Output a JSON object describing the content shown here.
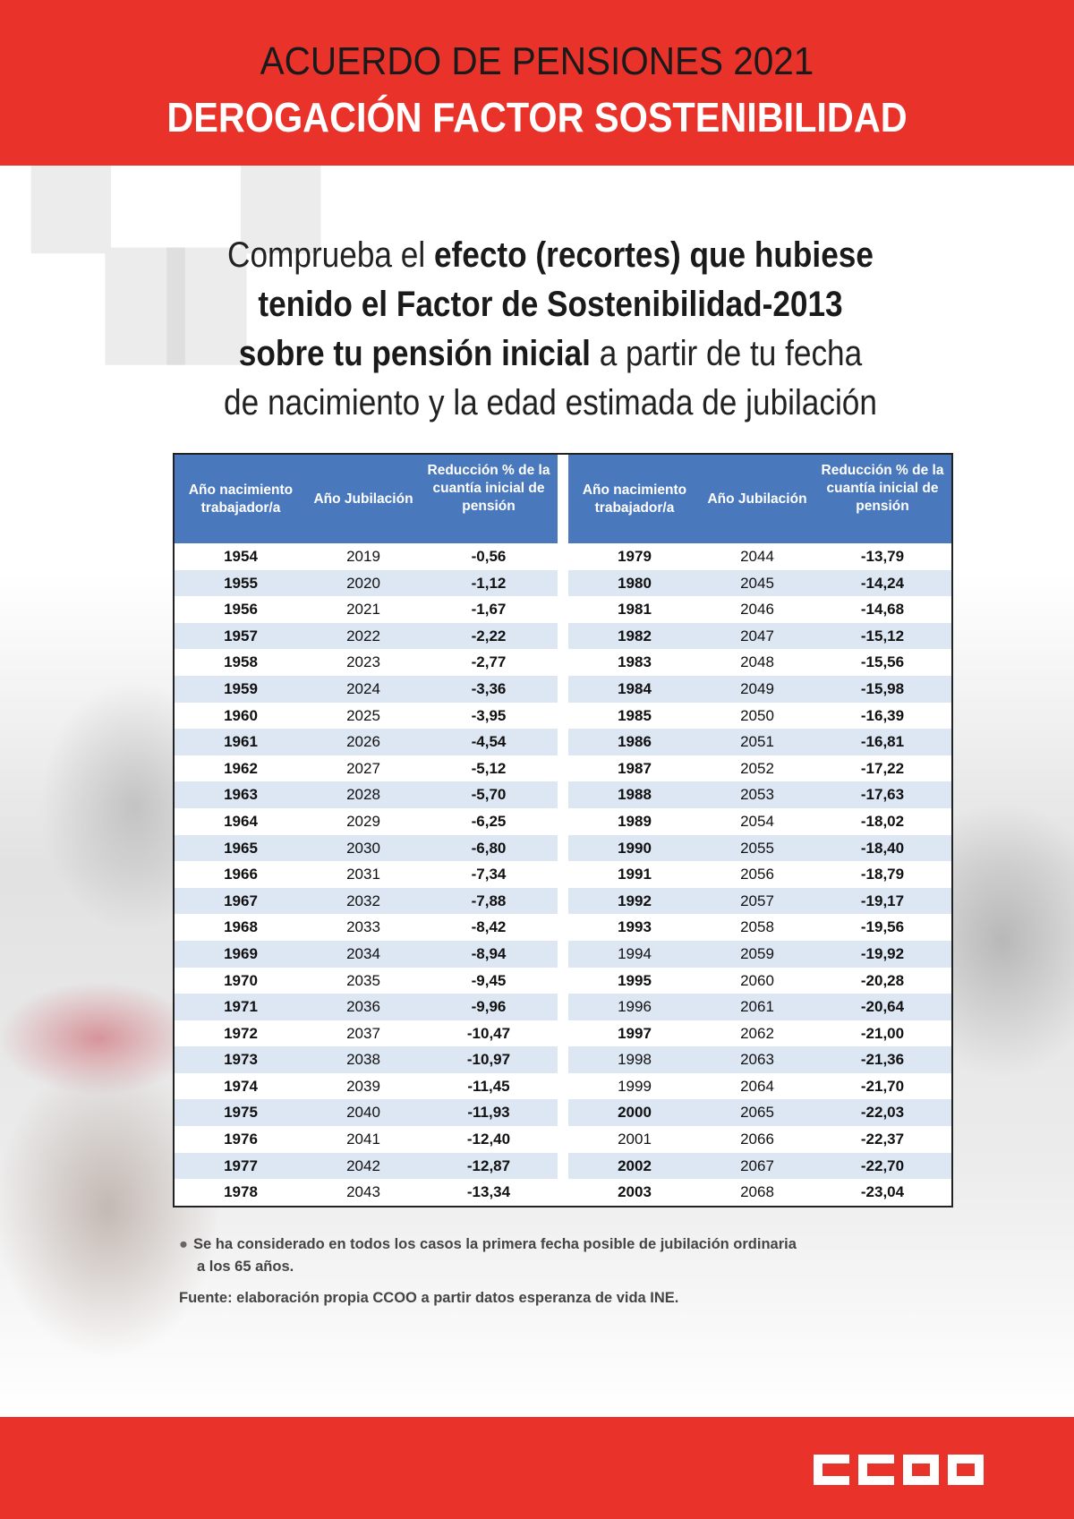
{
  "header": {
    "title_line1": "ACUERDO DE PENSIONES 2021",
    "title_line2": "DEROGACIÓN FACTOR SOSTENIBILIDAD"
  },
  "intro": {
    "l1a": "Comprueba el ",
    "l1b": "efecto (recortes) que hubiese",
    "l2": "tenido el Factor de Sostenibilidad-2013",
    "l3a": "sobre tu pensión inicial",
    "l3b": " a partir de tu fecha",
    "l4": "de nacimiento y la edad estimada de jubilación"
  },
  "table": {
    "headers": [
      "Año nacimiento trabajador/a",
      "Año Jubilación",
      "Reducción % de la cuantía inicial de pensión"
    ],
    "left_rows": [
      [
        "1954",
        "2019",
        "-0,56"
      ],
      [
        "1955",
        "2020",
        "-1,12"
      ],
      [
        "1956",
        "2021",
        "-1,67"
      ],
      [
        "1957",
        "2022",
        "-2,22"
      ],
      [
        "1958",
        "2023",
        "-2,77"
      ],
      [
        "1959",
        "2024",
        "-3,36"
      ],
      [
        "1960",
        "2025",
        "-3,95"
      ],
      [
        "1961",
        "2026",
        "-4,54"
      ],
      [
        "1962",
        "2027",
        "-5,12"
      ],
      [
        "1963",
        "2028",
        "-5,70"
      ],
      [
        "1964",
        "2029",
        "-6,25"
      ],
      [
        "1965",
        "2030",
        "-6,80"
      ],
      [
        "1966",
        "2031",
        "-7,34"
      ],
      [
        "1967",
        "2032",
        "-7,88"
      ],
      [
        "1968",
        "2033",
        "-8,42"
      ],
      [
        "1969",
        "2034",
        "-8,94"
      ],
      [
        "1970",
        "2035",
        "-9,45"
      ],
      [
        "1971",
        "2036",
        "-9,96"
      ],
      [
        "1972",
        "2037",
        "-10,47"
      ],
      [
        "1973",
        "2038",
        "-10,97"
      ],
      [
        "1974",
        "2039",
        "-11,45"
      ],
      [
        "1975",
        "2040",
        "-11,93"
      ],
      [
        "1976",
        "2041",
        "-12,40"
      ],
      [
        "1977",
        "2042",
        "-12,87"
      ],
      [
        "1978",
        "2043",
        "-13,34"
      ]
    ],
    "right_rows": [
      [
        "1979",
        "2044",
        "-13,79"
      ],
      [
        "1980",
        "2045",
        "-14,24"
      ],
      [
        "1981",
        "2046",
        "-14,68"
      ],
      [
        "1982",
        "2047",
        "-15,12"
      ],
      [
        "1983",
        "2048",
        "-15,56"
      ],
      [
        "1984",
        "2049",
        "-15,98"
      ],
      [
        "1985",
        "2050",
        "-16,39"
      ],
      [
        "1986",
        "2051",
        "-16,81"
      ],
      [
        "1987",
        "2052",
        "-17,22"
      ],
      [
        "1988",
        "2053",
        "-17,63"
      ],
      [
        "1989",
        "2054",
        "-18,02"
      ],
      [
        "1990",
        "2055",
        "-18,40"
      ],
      [
        "1991",
        "2056",
        "-18,79"
      ],
      [
        "1992",
        "2057",
        "-19,17"
      ],
      [
        "1993",
        "2058",
        "-19,56"
      ],
      [
        "1994",
        "2059",
        "-19,92"
      ],
      [
        "1995",
        "2060",
        "-20,28"
      ],
      [
        "1996",
        "2061",
        "-20,64"
      ],
      [
        "1997",
        "2062",
        "-21,00"
      ],
      [
        "1998",
        "2063",
        "-21,36"
      ],
      [
        "1999",
        "2064",
        "-21,70"
      ],
      [
        "2000",
        "2065",
        "-22,03"
      ],
      [
        "2001",
        "2066",
        "-22,37"
      ],
      [
        "2002",
        "2067",
        "-22,70"
      ],
      [
        "2003",
        "2068",
        "-23,04"
      ]
    ]
  },
  "notes": {
    "note1_line1": "Se ha considerado en todos los casos la primera fecha posible de jubilación ordinaria",
    "note1_line2": "a los 65 años.",
    "source": "Fuente: elaboración propia CCOO a partir datos esperanza de vida INE."
  },
  "footer": {
    "logo_text": "CCOO"
  },
  "colors": {
    "brand_red": "#e8322a",
    "table_header_blue": "#4a78bd",
    "row_stripe": "#dde6f3"
  }
}
